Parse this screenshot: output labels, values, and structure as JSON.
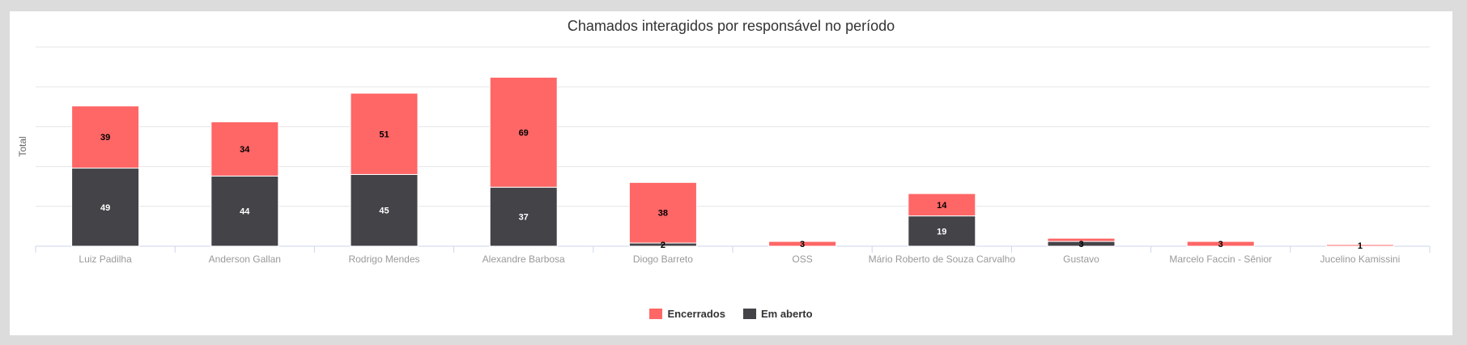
{
  "chart_data": {
    "type": "bar",
    "stacked": true,
    "title": "Chamados interagidos por responsável no período",
    "ylabel": "Total",
    "xlabel": "",
    "ylim": [
      0,
      125
    ],
    "grid": true,
    "legend_position": "bottom-center",
    "categories": [
      "Luiz Padilha",
      "Anderson Gallan",
      "Rodrigo Mendes",
      "Alexandre Barbosa",
      "Diogo Barreto",
      "OSS",
      "Mário Roberto de Souza Carvalho",
      "Gustavo",
      "Marcelo Faccin - Sênior",
      "Jucelino Kamissini"
    ],
    "series": [
      {
        "name": "Encerrados",
        "color": "#ff6666",
        "values": [
          39,
          34,
          51,
          69,
          38,
          3,
          14,
          2,
          3,
          1
        ]
      },
      {
        "name": "Em aberto",
        "color": "#434348",
        "values": [
          49,
          44,
          45,
          37,
          2,
          0,
          19,
          3,
          0,
          0
        ]
      }
    ],
    "data_labels": {
      "Encerrados": [
        "39",
        "34",
        "51",
        "69",
        "38",
        "3",
        "14",
        "",
        "3",
        "1"
      ],
      "Em aberto": [
        "49",
        "44",
        "45",
        "37",
        "2",
        "",
        "19",
        "3",
        "",
        ""
      ]
    }
  }
}
